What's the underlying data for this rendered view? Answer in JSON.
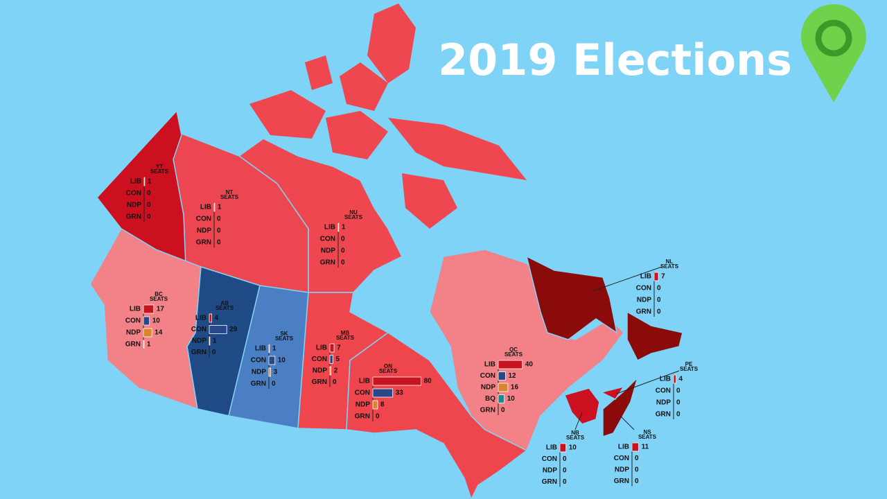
{
  "header": {
    "title": "2019 Elections"
  },
  "party_colors": {
    "LIB": "#c8141e",
    "CON": "#27498a",
    "NDP": "#d98630",
    "BQ": "#1b8b8b",
    "GRN": "#ffffff"
  },
  "regions": [
    {
      "code": "YT",
      "seats_label": "SEATS",
      "results": [
        {
          "party": "LIB",
          "seats": 1
        },
        {
          "party": "CON",
          "seats": 0
        },
        {
          "party": "NDP",
          "seats": 0
        },
        {
          "party": "GRN",
          "seats": 0
        }
      ]
    },
    {
      "code": "NT",
      "seats_label": "SEATS",
      "results": [
        {
          "party": "LIB",
          "seats": 1
        },
        {
          "party": "CON",
          "seats": 0
        },
        {
          "party": "NDP",
          "seats": 0
        },
        {
          "party": "GRN",
          "seats": 0
        }
      ]
    },
    {
      "code": "NU",
      "seats_label": "SEATS",
      "results": [
        {
          "party": "LIB",
          "seats": 1
        },
        {
          "party": "CON",
          "seats": 0
        },
        {
          "party": "NDP",
          "seats": 0
        },
        {
          "party": "GRN",
          "seats": 0
        }
      ]
    },
    {
      "code": "BC",
      "seats_label": "SEATS",
      "results": [
        {
          "party": "LIB",
          "seats": 17
        },
        {
          "party": "CON",
          "seats": 10
        },
        {
          "party": "NDP",
          "seats": 14
        },
        {
          "party": "GRN",
          "seats": 1
        }
      ]
    },
    {
      "code": "AB",
      "seats_label": "SEATS",
      "results": [
        {
          "party": "LIB",
          "seats": 4
        },
        {
          "party": "CON",
          "seats": 29
        },
        {
          "party": "NDP",
          "seats": 1
        },
        {
          "party": "GRN",
          "seats": 0
        }
      ]
    },
    {
      "code": "SK",
      "seats_label": "SEATS",
      "results": [
        {
          "party": "LIB",
          "seats": 1
        },
        {
          "party": "CON",
          "seats": 10
        },
        {
          "party": "NDP",
          "seats": 3
        },
        {
          "party": "GRN",
          "seats": 0
        }
      ]
    },
    {
      "code": "MB",
      "seats_label": "SEATS",
      "results": [
        {
          "party": "LIB",
          "seats": 7
        },
        {
          "party": "CON",
          "seats": 5
        },
        {
          "party": "NDP",
          "seats": 2
        },
        {
          "party": "GRN",
          "seats": 0
        }
      ]
    },
    {
      "code": "ON",
      "seats_label": "SEATS",
      "results": [
        {
          "party": "LIB",
          "seats": 80
        },
        {
          "party": "CON",
          "seats": 33
        },
        {
          "party": "NDP",
          "seats": 8
        },
        {
          "party": "GRN",
          "seats": 0
        }
      ]
    },
    {
      "code": "QC",
      "seats_label": "SEATS",
      "results": [
        {
          "party": "LIB",
          "seats": 40
        },
        {
          "party": "CON",
          "seats": 12
        },
        {
          "party": "NDP",
          "seats": 16
        },
        {
          "party": "BQ",
          "seats": 10
        },
        {
          "party": "GRN",
          "seats": 0
        }
      ]
    },
    {
      "code": "NL",
      "seats_label": "SEATS",
      "results": [
        {
          "party": "LIB",
          "seats": 7
        },
        {
          "party": "CON",
          "seats": 0
        },
        {
          "party": "NDP",
          "seats": 0
        },
        {
          "party": "GRN",
          "seats": 0
        }
      ]
    },
    {
      "code": "PE",
      "seats_label": "SEATS",
      "results": [
        {
          "party": "LIB",
          "seats": 4
        },
        {
          "party": "CON",
          "seats": 0
        },
        {
          "party": "NDP",
          "seats": 0
        },
        {
          "party": "GRN",
          "seats": 0
        }
      ]
    },
    {
      "code": "NB",
      "seats_label": "SEATS",
      "results": [
        {
          "party": "LIB",
          "seats": 10
        },
        {
          "party": "CON",
          "seats": 0
        },
        {
          "party": "NDP",
          "seats": 0
        },
        {
          "party": "GRN",
          "seats": 0
        }
      ]
    },
    {
      "code": "NS",
      "seats_label": "SEATS",
      "results": [
        {
          "party": "LIB",
          "seats": 11
        },
        {
          "party": "CON",
          "seats": 0
        },
        {
          "party": "NDP",
          "seats": 0
        },
        {
          "party": "GRN",
          "seats": 0
        }
      ]
    }
  ]
}
